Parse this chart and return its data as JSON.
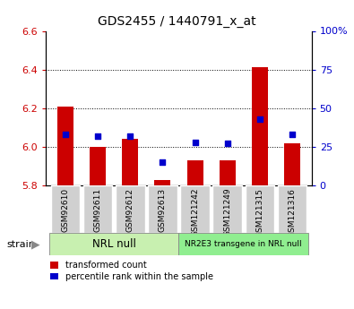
{
  "title": "GDS2455 / 1440791_x_at",
  "samples": [
    "GSM92610",
    "GSM92611",
    "GSM92612",
    "GSM92613",
    "GSM121242",
    "GSM121249",
    "GSM121315",
    "GSM121316"
  ],
  "transformed_counts": [
    6.21,
    6.0,
    6.04,
    5.83,
    5.93,
    5.93,
    6.41,
    6.02
  ],
  "percentile_ranks": [
    33,
    32,
    32,
    15,
    28,
    27,
    43,
    33
  ],
  "bar_bottom": 5.8,
  "ylim_left": [
    5.8,
    6.6
  ],
  "ylim_right": [
    0,
    100
  ],
  "yticks_left": [
    5.8,
    6.0,
    6.2,
    6.4,
    6.6
  ],
  "yticks_right": [
    0,
    25,
    50,
    75,
    100
  ],
  "group1_label": "NRL null",
  "group2_label": "NR2E3 transgene in NRL null",
  "group1_indices": [
    0,
    1,
    2,
    3
  ],
  "group2_indices": [
    4,
    5,
    6,
    7
  ],
  "group1_color": "#c8f0b0",
  "group2_color": "#90ee90",
  "bar_color": "#cc0000",
  "dot_color": "#0000cc",
  "tick_color_left": "#cc0000",
  "tick_color_right": "#0000cc",
  "xtick_box_color": "#d0d0d0",
  "grid_color": "black",
  "legend_bar_label": "transformed count",
  "legend_dot_label": "percentile rank within the sample",
  "strain_label": "strain"
}
